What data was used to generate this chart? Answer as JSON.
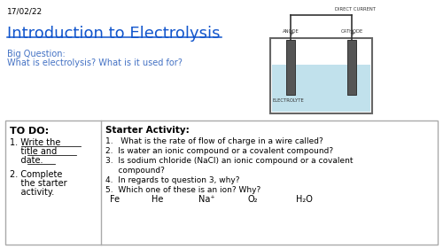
{
  "date": "17/02/22",
  "title": "Introduction to Electrolysis",
  "big_question_label": "Big Question:",
  "big_question_text": "What is electrolysis? What is it used for?",
  "todo_header": "TO DO:",
  "starter_header": "Starter Activity:",
  "starter_items": [
    "1.   What is the rate of flow of charge in a wire called?",
    "2.  Is water an ionic compound or a covalent compound?",
    "3.  Is sodium chloride (NaCl) an ionic compound or a covalent",
    "     compound?",
    "4.  In regards to question 3, why?",
    "5.  Which one of these is an ion? Why?"
  ],
  "chemical_row": [
    "Fe",
    "He",
    "Na⁺",
    "O₂",
    "H₂O"
  ],
  "bg_color": "#ffffff",
  "title_color": "#1155CC",
  "date_color": "#000000",
  "big_q_color": "#4472C4",
  "todo_color": "#000000",
  "box_border_color": "#aaaaaa",
  "divider_color": "#aaaaaa",
  "electrode_color": "#555555",
  "wire_color": "#333333",
  "liquid_color": "#ADD8E6",
  "label_color": "#333333"
}
